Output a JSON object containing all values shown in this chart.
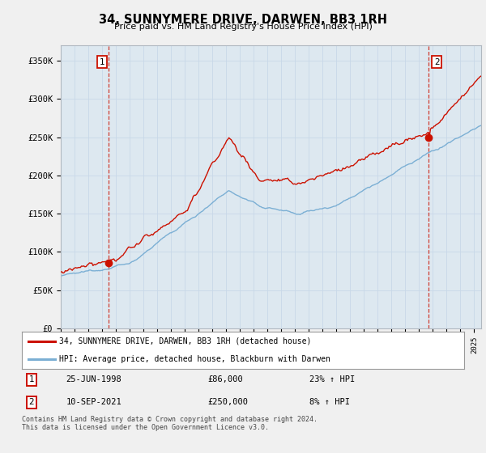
{
  "title": "34, SUNNYMERE DRIVE, DARWEN, BB3 1RH",
  "subtitle": "Price paid vs. HM Land Registry's House Price Index (HPI)",
  "ylabel_ticks": [
    "£0",
    "£50K",
    "£100K",
    "£150K",
    "£200K",
    "£250K",
    "£300K",
    "£350K"
  ],
  "ytick_values": [
    0,
    50000,
    100000,
    150000,
    200000,
    250000,
    300000,
    350000
  ],
  "ylim": [
    0,
    370000
  ],
  "xlim_start": 1995.0,
  "xlim_end": 2025.5,
  "hpi_color": "#7bafd4",
  "price_color": "#cc1100",
  "marker_color": "#cc1100",
  "plot_bg_color": "#dde8f0",
  "legend_label_price": "34, SUNNYMERE DRIVE, DARWEN, BB3 1RH (detached house)",
  "legend_label_hpi": "HPI: Average price, detached house, Blackburn with Darwen",
  "transaction1_label": "25-JUN-1998",
  "transaction1_price": "£86,000",
  "transaction1_hpi": "23% ↑ HPI",
  "transaction1_date": 1998.48,
  "transaction1_value": 86000,
  "transaction2_label": "10-SEP-2021",
  "transaction2_price": "£250,000",
  "transaction2_hpi": "8% ↑ HPI",
  "transaction2_date": 2021.69,
  "transaction2_value": 250000,
  "copyright_text": "Contains HM Land Registry data © Crown copyright and database right 2024.\nThis data is licensed under the Open Government Licence v3.0.",
  "background_color": "#f0f0f0",
  "grid_color": "#c8d8e8"
}
